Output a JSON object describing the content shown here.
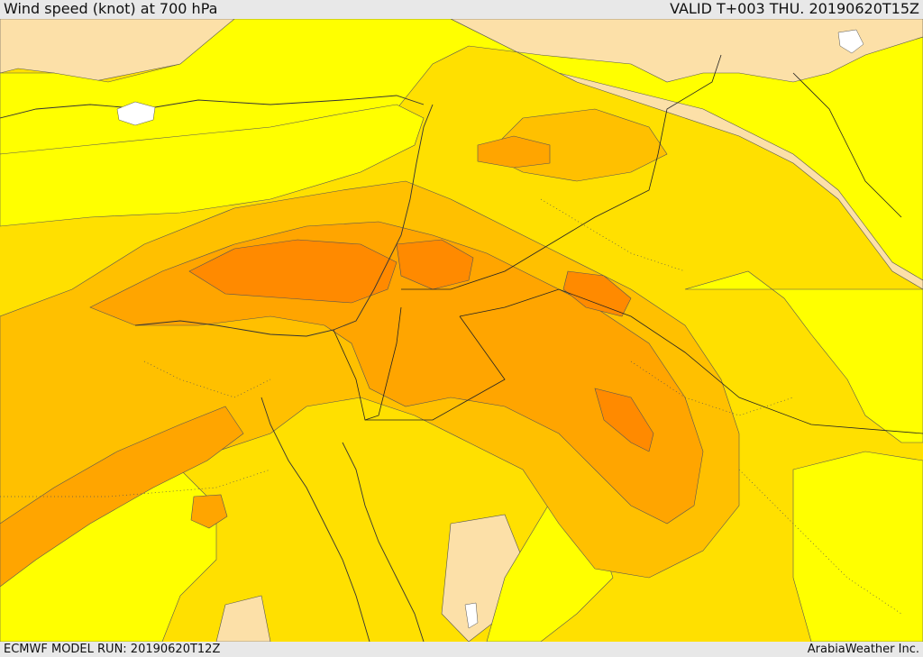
{
  "header": {
    "title": "Wind speed (knot) at 700 hPa",
    "valid": "VALID T+003 THU. 20190620T15Z"
  },
  "footer": {
    "model_run": "ECMWF MODEL RUN: 20190620T12Z",
    "credit": "ArabiaWeather Inc."
  },
  "palette": {
    "calm": "#fce0a8",
    "band1": "#ffff00",
    "band2": "#ffe000",
    "band3": "#ffc000",
    "band4": "#ffa500",
    "band5": "#ff8a00",
    "water": "#ffffff"
  }
}
